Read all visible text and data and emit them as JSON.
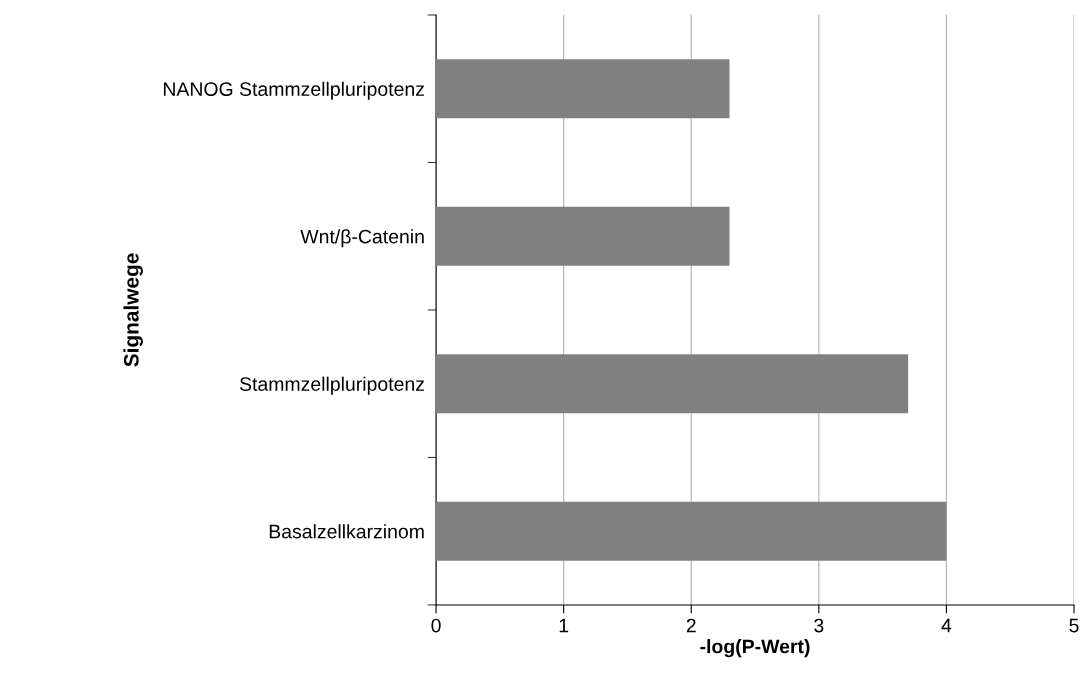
{
  "chart_data": {
    "type": "bar",
    "orientation": "horizontal",
    "xlabel": "-log(P-Wert)",
    "ylabel": "Signalwege",
    "categories": [
      "NANOG Stammzellpluripotenz",
      "Wnt/β-Catenin",
      "Stammzellpluripotenz",
      "Basalzellkarzinom"
    ],
    "values": [
      2.3,
      2.3,
      3.7,
      4.0
    ],
    "color": "#808080",
    "xlim": [
      0,
      5
    ],
    "xticks": [
      0,
      1,
      2,
      3,
      4,
      5
    ],
    "grid": "x"
  }
}
